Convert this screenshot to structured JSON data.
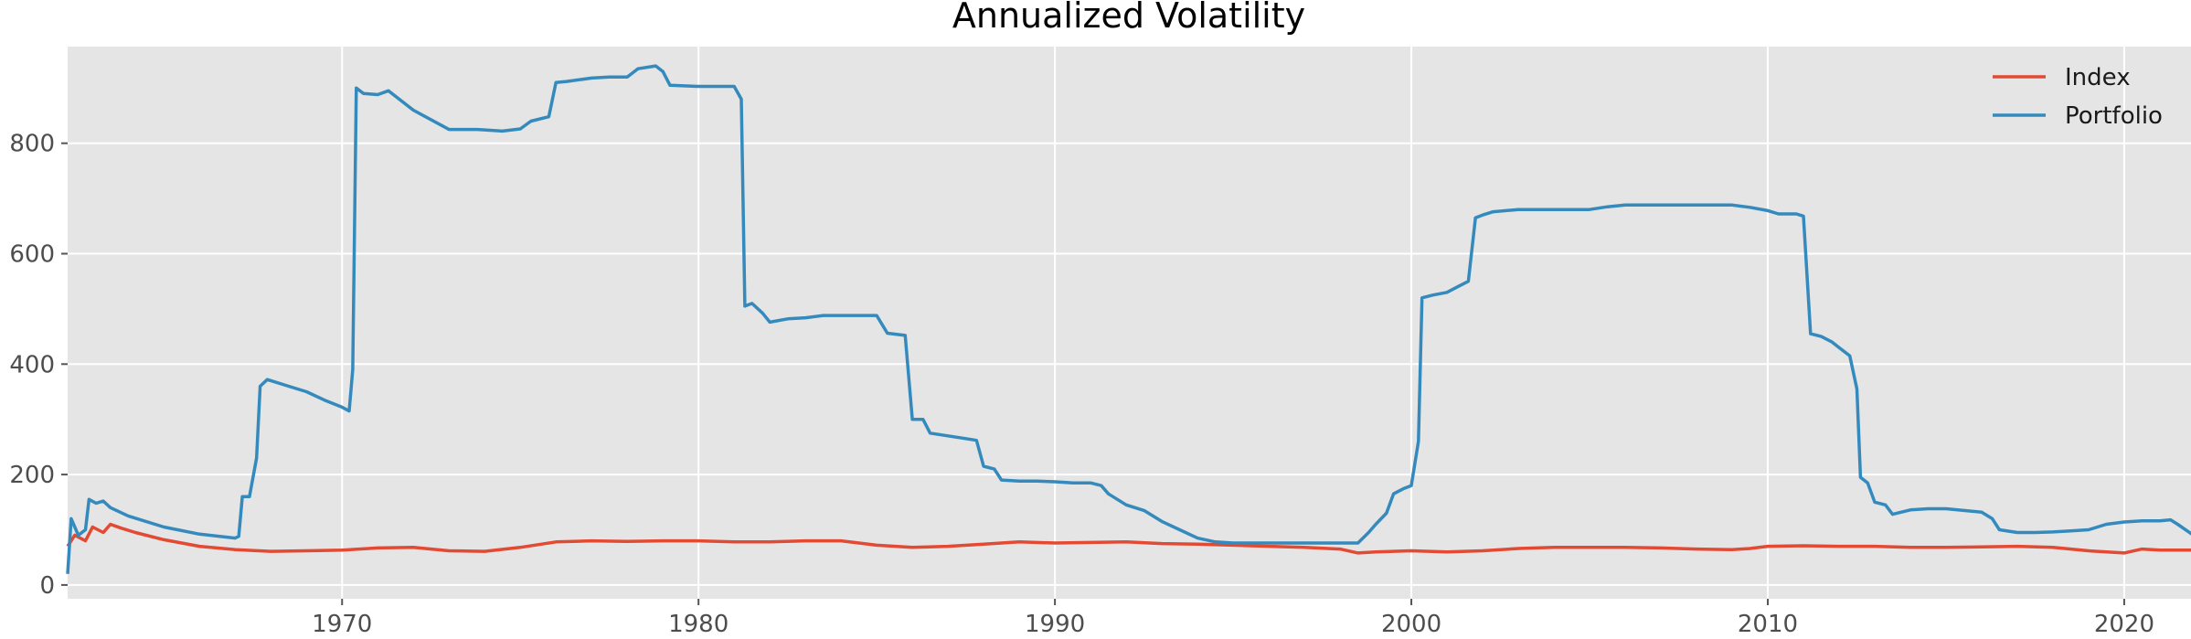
{
  "chart_data": {
    "type": "line",
    "title": "Annualized Volatility",
    "xlabel": "",
    "ylabel": "",
    "xlim": [
      1962.3,
      2021.9
    ],
    "ylim": [
      -25,
      975
    ],
    "xticks": [
      1970,
      1980,
      1990,
      2000,
      2010,
      2020
    ],
    "yticks": [
      0,
      200,
      400,
      600,
      800
    ],
    "grid": true,
    "legend_position": "top-right",
    "background": "#e5e5e5",
    "series": [
      {
        "name": "Index",
        "color": "#e24a33",
        "points": [
          [
            1962.3,
            70
          ],
          [
            1962.5,
            90
          ],
          [
            1962.8,
            80
          ],
          [
            1963.0,
            105
          ],
          [
            1963.3,
            95
          ],
          [
            1963.5,
            110
          ],
          [
            1963.8,
            103
          ],
          [
            1964.2,
            95
          ],
          [
            1965.0,
            82
          ],
          [
            1966.0,
            70
          ],
          [
            1967.0,
            64
          ],
          [
            1968.0,
            61
          ],
          [
            1969.0,
            62
          ],
          [
            1970.0,
            63
          ],
          [
            1971.0,
            67
          ],
          [
            1972.0,
            68
          ],
          [
            1973.0,
            62
          ],
          [
            1974.0,
            61
          ],
          [
            1975.0,
            68
          ],
          [
            1976.0,
            78
          ],
          [
            1977.0,
            80
          ],
          [
            1978.0,
            79
          ],
          [
            1979.0,
            80
          ],
          [
            1980.0,
            80
          ],
          [
            1981.0,
            78
          ],
          [
            1982.0,
            78
          ],
          [
            1983.0,
            80
          ],
          [
            1984.0,
            80
          ],
          [
            1985.0,
            72
          ],
          [
            1986.0,
            68
          ],
          [
            1987.0,
            70
          ],
          [
            1988.0,
            74
          ],
          [
            1989.0,
            78
          ],
          [
            1990.0,
            76
          ],
          [
            1991.0,
            77
          ],
          [
            1992.0,
            78
          ],
          [
            1993.0,
            75
          ],
          [
            1994.0,
            74
          ],
          [
            1995.0,
            72
          ],
          [
            1996.0,
            70
          ],
          [
            1997.0,
            68
          ],
          [
            1998.0,
            65
          ],
          [
            1998.5,
            58
          ],
          [
            1999.0,
            60
          ],
          [
            2000.0,
            62
          ],
          [
            2001.0,
            60
          ],
          [
            2002.0,
            62
          ],
          [
            2003.0,
            66
          ],
          [
            2004.0,
            68
          ],
          [
            2005.0,
            68
          ],
          [
            2006.0,
            68
          ],
          [
            2007.0,
            67
          ],
          [
            2008.0,
            65
          ],
          [
            2009.0,
            64
          ],
          [
            2009.5,
            66
          ],
          [
            2010.0,
            70
          ],
          [
            2011.0,
            71
          ],
          [
            2012.0,
            70
          ],
          [
            2013.0,
            70
          ],
          [
            2014.0,
            68
          ],
          [
            2015.0,
            68
          ],
          [
            2016.0,
            69
          ],
          [
            2017.0,
            70
          ],
          [
            2018.0,
            68
          ],
          [
            2019.0,
            62
          ],
          [
            2020.0,
            58
          ],
          [
            2020.5,
            65
          ],
          [
            2021.0,
            63
          ],
          [
            2021.9,
            63
          ]
        ]
      },
      {
        "name": "Portfolio",
        "color": "#348abd",
        "points": [
          [
            1962.3,
            20
          ],
          [
            1962.4,
            120
          ],
          [
            1962.6,
            90
          ],
          [
            1962.8,
            100
          ],
          [
            1962.9,
            155
          ],
          [
            1963.1,
            148
          ],
          [
            1963.3,
            152
          ],
          [
            1963.5,
            140
          ],
          [
            1964.0,
            125
          ],
          [
            1965.0,
            105
          ],
          [
            1966.0,
            92
          ],
          [
            1967.0,
            85
          ],
          [
            1967.1,
            88
          ],
          [
            1967.2,
            160
          ],
          [
            1967.4,
            160
          ],
          [
            1967.6,
            230
          ],
          [
            1967.7,
            360
          ],
          [
            1967.9,
            372
          ],
          [
            1968.5,
            360
          ],
          [
            1969.0,
            350
          ],
          [
            1969.5,
            335
          ],
          [
            1970.0,
            322
          ],
          [
            1970.2,
            315
          ],
          [
            1970.3,
            390
          ],
          [
            1970.4,
            900
          ],
          [
            1970.6,
            890
          ],
          [
            1971.0,
            888
          ],
          [
            1971.3,
            895
          ],
          [
            1972.0,
            860
          ],
          [
            1973.0,
            825
          ],
          [
            1973.8,
            825
          ],
          [
            1974.5,
            822
          ],
          [
            1975.0,
            826
          ],
          [
            1975.3,
            840
          ],
          [
            1975.8,
            848
          ],
          [
            1976.0,
            910
          ],
          [
            1976.3,
            912
          ],
          [
            1977.0,
            918
          ],
          [
            1977.5,
            920
          ],
          [
            1978.0,
            920
          ],
          [
            1978.3,
            935
          ],
          [
            1978.8,
            940
          ],
          [
            1979.0,
            930
          ],
          [
            1979.2,
            905
          ],
          [
            1980.0,
            903
          ],
          [
            1981.0,
            903
          ],
          [
            1981.2,
            880
          ],
          [
            1981.3,
            505
          ],
          [
            1981.5,
            510
          ],
          [
            1981.8,
            492
          ],
          [
            1982.0,
            476
          ],
          [
            1982.5,
            482
          ],
          [
            1983.0,
            484
          ],
          [
            1983.5,
            488
          ],
          [
            1984.0,
            488
          ],
          [
            1984.5,
            488
          ],
          [
            1985.0,
            488
          ],
          [
            1985.3,
            456
          ],
          [
            1985.8,
            452
          ],
          [
            1986.0,
            300
          ],
          [
            1986.3,
            300
          ],
          [
            1986.5,
            275
          ],
          [
            1987.0,
            270
          ],
          [
            1987.5,
            265
          ],
          [
            1987.8,
            262
          ],
          [
            1988.0,
            215
          ],
          [
            1988.3,
            210
          ],
          [
            1988.5,
            190
          ],
          [
            1989.0,
            188
          ],
          [
            1989.5,
            188
          ],
          [
            1990.0,
            187
          ],
          [
            1990.5,
            185
          ],
          [
            1991.0,
            185
          ],
          [
            1991.3,
            180
          ],
          [
            1991.5,
            165
          ],
          [
            1992.0,
            145
          ],
          [
            1992.5,
            135
          ],
          [
            1993.0,
            115
          ],
          [
            1993.5,
            100
          ],
          [
            1994.0,
            85
          ],
          [
            1994.5,
            78
          ],
          [
            1995.0,
            76
          ],
          [
            1996.0,
            76
          ],
          [
            1997.0,
            76
          ],
          [
            1998.0,
            76
          ],
          [
            1998.5,
            76
          ],
          [
            1998.8,
            95
          ],
          [
            1999.0,
            110
          ],
          [
            1999.3,
            130
          ],
          [
            1999.5,
            165
          ],
          [
            1999.8,
            175
          ],
          [
            2000.0,
            180
          ],
          [
            2000.2,
            260
          ],
          [
            2000.3,
            520
          ],
          [
            2000.6,
            525
          ],
          [
            2001.0,
            530
          ],
          [
            2001.3,
            540
          ],
          [
            2001.6,
            550
          ],
          [
            2001.8,
            665
          ],
          [
            2002.0,
            670
          ],
          [
            2002.3,
            676
          ],
          [
            2003.0,
            680
          ],
          [
            2004.0,
            680
          ],
          [
            2005.0,
            680
          ],
          [
            2005.5,
            685
          ],
          [
            2006.0,
            688
          ],
          [
            2007.0,
            688
          ],
          [
            2008.0,
            688
          ],
          [
            2009.0,
            688
          ],
          [
            2009.5,
            684
          ],
          [
            2010.0,
            678
          ],
          [
            2010.3,
            672
          ],
          [
            2010.8,
            672
          ],
          [
            2011.0,
            668
          ],
          [
            2011.2,
            455
          ],
          [
            2011.5,
            450
          ],
          [
            2011.8,
            440
          ],
          [
            2012.0,
            430
          ],
          [
            2012.3,
            415
          ],
          [
            2012.5,
            355
          ],
          [
            2012.6,
            195
          ],
          [
            2012.8,
            185
          ],
          [
            2013.0,
            150
          ],
          [
            2013.3,
            145
          ],
          [
            2013.5,
            128
          ],
          [
            2014.0,
            136
          ],
          [
            2014.5,
            138
          ],
          [
            2015.0,
            138
          ],
          [
            2015.5,
            135
          ],
          [
            2016.0,
            132
          ],
          [
            2016.3,
            120
          ],
          [
            2016.5,
            100
          ],
          [
            2017.0,
            95
          ],
          [
            2017.5,
            95
          ],
          [
            2018.0,
            96
          ],
          [
            2018.5,
            98
          ],
          [
            2019.0,
            100
          ],
          [
            2019.5,
            110
          ],
          [
            2020.0,
            114
          ],
          [
            2020.5,
            116
          ],
          [
            2021.0,
            116
          ],
          [
            2021.3,
            118
          ],
          [
            2021.5,
            110
          ],
          [
            2021.9,
            92
          ]
        ]
      }
    ]
  }
}
